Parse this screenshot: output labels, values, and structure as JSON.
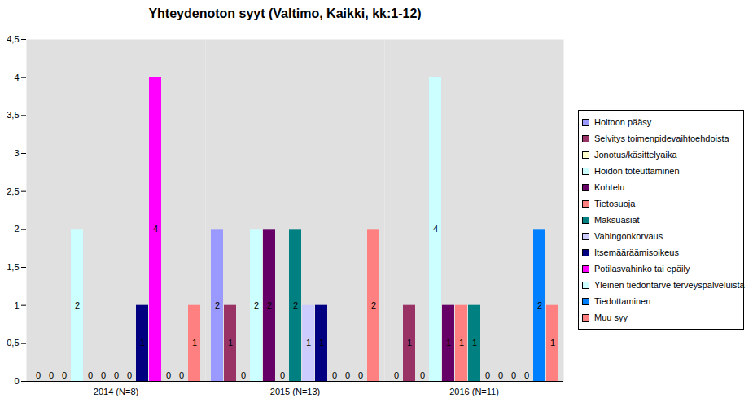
{
  "chart_data": {
    "type": "bar",
    "title": "Yhteydenoton syyt (Valtimo, Kaikki, kk:1-12)",
    "categories": [
      "2014 (N=8)",
      "2015 (N=13)",
      "2016 (N=11)"
    ],
    "series": [
      {
        "name": "Hoitoon pääsy",
        "color": "#9999ff",
        "values": [
          0,
          2,
          0
        ]
      },
      {
        "name": "Selvitys toimenpidevaihtoehdoista",
        "color": "#993366",
        "values": [
          0,
          1,
          1
        ]
      },
      {
        "name": "Jonotus/käsittelyaika",
        "color": "#ffffcc",
        "values": [
          0,
          0,
          0
        ]
      },
      {
        "name": "Hoidon toteuttaminen",
        "color": "#ccffff",
        "values": [
          2,
          2,
          4
        ]
      },
      {
        "name": "Kohtelu",
        "color": "#660066",
        "values": [
          0,
          2,
          1
        ]
      },
      {
        "name": "Tietosuoja",
        "color": "#ff8080",
        "values": [
          0,
          0,
          1
        ]
      },
      {
        "name": "Maksuasiat",
        "color": "#008080",
        "values": [
          0,
          2,
          1
        ]
      },
      {
        "name": "Vahingonkorvaus",
        "color": "#ccccff",
        "values": [
          0,
          1,
          0
        ]
      },
      {
        "name": "Itsemääräämisoikeus",
        "color": "#000080",
        "values": [
          1,
          1,
          0
        ]
      },
      {
        "name": "Potilasvahinko tai epäily",
        "color": "#ff00ff",
        "values": [
          4,
          0,
          0
        ]
      },
      {
        "name": "Yleinen tiedontarve terveyspalveluista",
        "color": "#ccffff",
        "values": [
          0,
          0,
          0
        ]
      },
      {
        "name": "Tiedottaminen",
        "color": "#0080ff",
        "values": [
          0,
          0,
          2
        ]
      },
      {
        "name": "Muu syy",
        "color": "#ff8080",
        "values": [
          1,
          2,
          1
        ]
      }
    ],
    "ylim": [
      0,
      4.5
    ],
    "yticks": [
      0,
      {
        "value": 0.5,
        "label": "0,5"
      },
      1,
      {
        "value": 1.5,
        "label": "1,5"
      },
      2,
      {
        "value": 2.5,
        "label": "2,5"
      },
      3,
      {
        "value": 3.5,
        "label": "3,5"
      },
      4,
      {
        "value": 4.5,
        "label": "4,5"
      }
    ],
    "grid": false,
    "legend": "right",
    "data_labels": true
  }
}
